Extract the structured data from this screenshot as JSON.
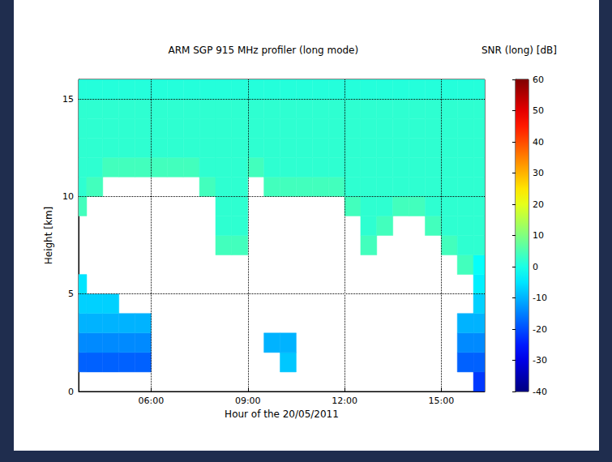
{
  "chart_data": {
    "type": "heatmap",
    "title": "ARM SGP 915 MHz profiler (long mode)",
    "x_label": "Hour of the 20/05/2011",
    "y_label": "Height [km]",
    "xlim": [
      3.75,
      16.35
    ],
    "ylim": [
      0,
      16
    ],
    "xticks": [
      {
        "value": 6,
        "label": "06:00"
      },
      {
        "value": 9,
        "label": "09:00"
      },
      {
        "value": 12,
        "label": "12:00"
      },
      {
        "value": 15,
        "label": "15:00"
      }
    ],
    "yticks": [
      0,
      5,
      10,
      15
    ],
    "grid": true,
    "x_edges": [
      3.75,
      4,
      4.5,
      5,
      5.5,
      6,
      6.5,
      7,
      7.5,
      8,
      8.5,
      9,
      9.5,
      10,
      10.5,
      11,
      11.5,
      12,
      12.5,
      13,
      13.5,
      14,
      14.5,
      15,
      15.5,
      16,
      16.35
    ],
    "y_edges": [
      0,
      1,
      2,
      3,
      4,
      5,
      6,
      7,
      8,
      9,
      10,
      11,
      12,
      13,
      14,
      15,
      16
    ],
    "cells": [
      [
        null,
        null,
        null,
        null,
        null,
        null,
        null,
        null,
        null,
        null,
        null,
        null,
        null,
        null,
        null,
        null,
        null,
        null,
        null,
        null,
        null,
        null,
        null,
        null,
        null,
        -22
      ],
      [
        -18,
        -18,
        -18,
        -18,
        -18,
        null,
        null,
        null,
        null,
        null,
        null,
        null,
        null,
        -8,
        null,
        null,
        null,
        null,
        null,
        null,
        null,
        null,
        null,
        null,
        -18,
        -18
      ],
      [
        -14,
        -14,
        -14,
        -14,
        -14,
        null,
        null,
        null,
        null,
        null,
        null,
        null,
        -10,
        -10,
        null,
        null,
        null,
        null,
        null,
        null,
        null,
        null,
        null,
        null,
        -14,
        -14
      ],
      [
        -10,
        -10,
        -10,
        -10,
        -10,
        null,
        null,
        null,
        null,
        null,
        null,
        null,
        null,
        null,
        null,
        null,
        null,
        null,
        null,
        null,
        null,
        null,
        null,
        null,
        -10,
        -10
      ],
      [
        -7,
        -7,
        -7,
        null,
        null,
        null,
        null,
        null,
        null,
        null,
        null,
        null,
        null,
        null,
        null,
        null,
        null,
        null,
        null,
        null,
        null,
        null,
        null,
        null,
        null,
        -7
      ],
      [
        -5,
        null,
        null,
        null,
        null,
        null,
        null,
        null,
        null,
        null,
        null,
        null,
        null,
        null,
        null,
        null,
        null,
        null,
        null,
        null,
        null,
        null,
        null,
        null,
        null,
        -4
      ],
      [
        null,
        null,
        null,
        null,
        null,
        null,
        null,
        null,
        null,
        null,
        null,
        null,
        null,
        null,
        null,
        null,
        null,
        null,
        null,
        null,
        null,
        null,
        null,
        null,
        4,
        -2
      ],
      [
        null,
        null,
        null,
        null,
        null,
        null,
        null,
        null,
        null,
        4,
        4,
        null,
        null,
        null,
        null,
        null,
        null,
        null,
        4,
        null,
        null,
        null,
        null,
        4,
        2,
        2
      ],
      [
        null,
        null,
        null,
        null,
        null,
        null,
        null,
        null,
        null,
        2,
        2,
        null,
        null,
        null,
        null,
        null,
        null,
        null,
        2,
        4,
        null,
        null,
        4,
        2,
        2,
        2
      ],
      [
        4,
        null,
        null,
        null,
        null,
        null,
        null,
        null,
        null,
        2,
        2,
        null,
        null,
        null,
        null,
        null,
        null,
        4,
        2,
        2,
        4,
        4,
        2,
        2,
        2,
        2
      ],
      [
        2,
        4,
        null,
        null,
        null,
        null,
        null,
        null,
        4,
        2,
        2,
        null,
        4,
        4,
        4,
        4,
        4,
        2,
        2,
        2,
        2,
        2,
        2,
        2,
        2,
        2
      ],
      [
        2,
        2,
        4,
        4,
        4,
        4,
        4,
        4,
        2,
        2,
        2,
        4,
        2,
        2,
        2,
        2,
        2,
        2,
        2,
        2,
        2,
        2,
        2,
        2,
        2,
        2
      ],
      [
        2,
        2,
        2,
        2,
        2,
        2,
        2,
        2,
        2,
        2,
        2,
        2,
        2,
        2,
        2,
        2,
        2,
        2,
        2,
        2,
        2,
        2,
        2,
        2,
        2,
        2
      ],
      [
        2,
        2,
        2,
        2,
        2,
        2,
        2,
        2,
        2,
        2,
        2,
        2,
        2,
        2,
        2,
        2,
        2,
        2,
        2,
        2,
        2,
        2,
        2,
        2,
        2,
        2
      ],
      [
        2,
        2,
        2,
        2,
        2,
        2,
        2,
        2,
        2,
        2,
        2,
        2,
        2,
        2,
        2,
        2,
        2,
        2,
        2,
        2,
        2,
        2,
        2,
        2,
        2,
        2
      ],
      [
        1,
        1,
        1,
        1,
        1,
        1,
        1,
        1,
        1,
        1,
        1,
        1,
        1,
        1,
        1,
        1,
        1,
        1,
        1,
        1,
        1,
        1,
        1,
        1,
        1,
        1
      ]
    ],
    "colorbar": {
      "label": "SNR (long) [dB]",
      "range": [
        -40,
        60
      ],
      "ticks": [
        -40,
        -30,
        -20,
        -10,
        0,
        10,
        20,
        30,
        40,
        50,
        60
      ]
    }
  }
}
